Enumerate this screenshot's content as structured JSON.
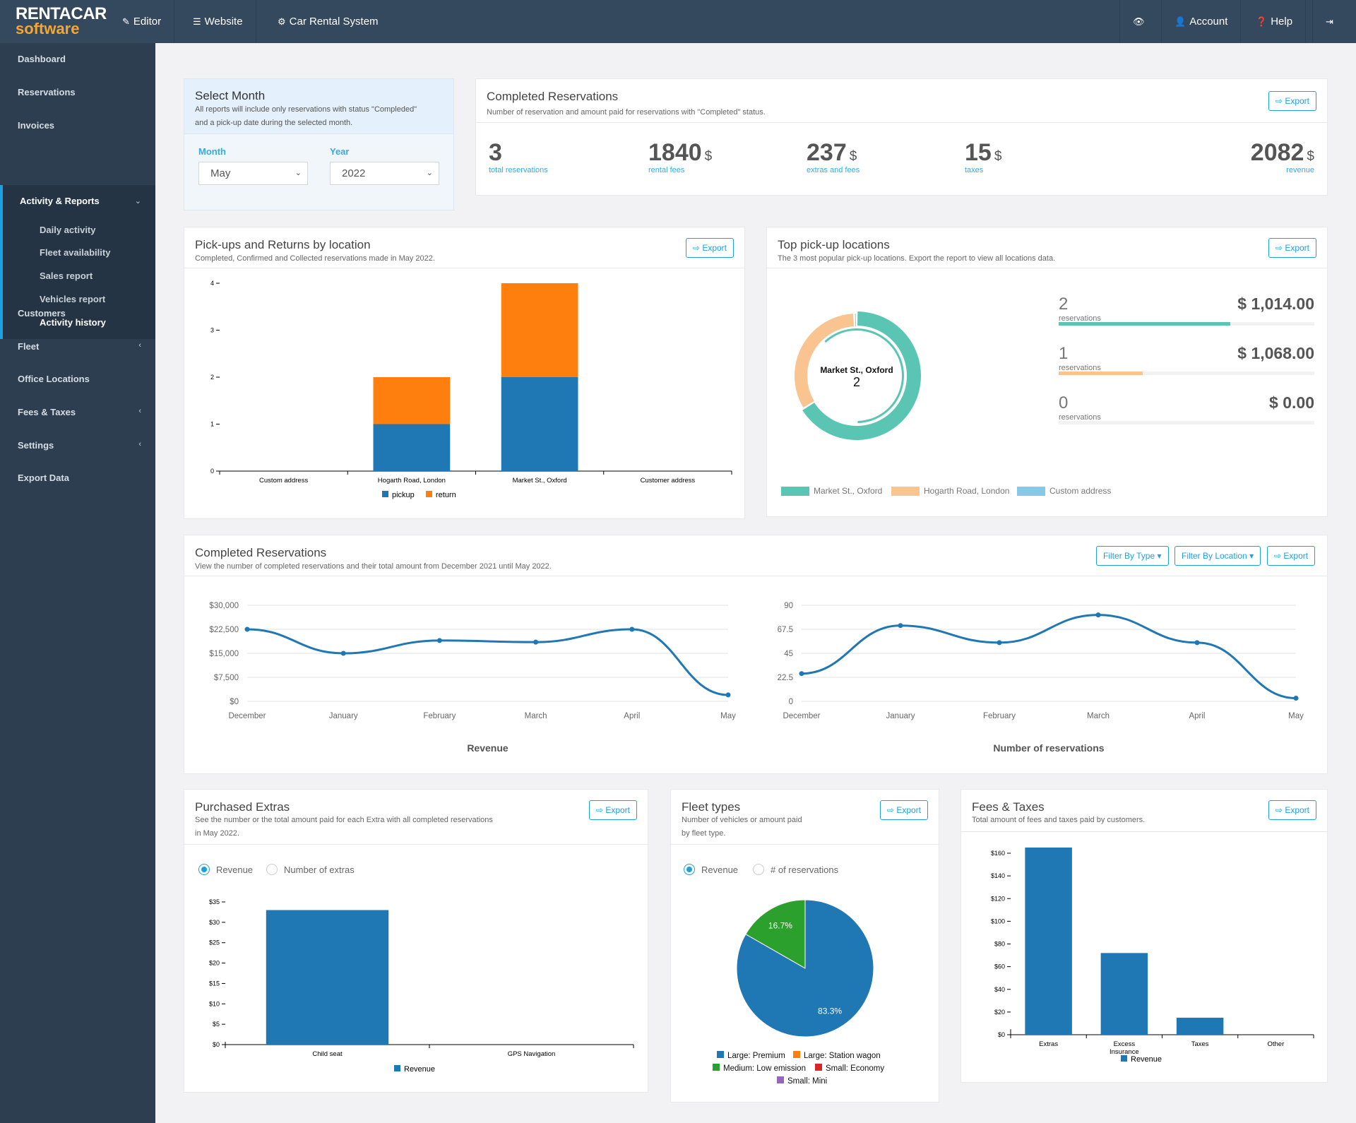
{
  "header": {
    "logo_top": "RENTACAR",
    "logo_bottom": "software",
    "nav": [
      {
        "label": "Editor",
        "icon": "pencil-icon"
      },
      {
        "label": "Website",
        "icon": "list-icon"
      },
      {
        "label": "Car Rental System",
        "icon": "gear-icon"
      }
    ],
    "right": [
      {
        "label": "",
        "icon": "eye-icon"
      },
      {
        "label": "Account",
        "icon": "user-icon"
      },
      {
        "label": "Help",
        "icon": "question-icon"
      },
      {
        "label": "",
        "icon": "logout-icon"
      }
    ]
  },
  "sidebar": {
    "items": [
      "Dashboard",
      "Reservations",
      "Invoices"
    ],
    "group": {
      "label": "Activity & Reports",
      "sub": [
        "Daily activity",
        "Fleet availability",
        "Sales report",
        "Vehicles report",
        "Activity history"
      ]
    },
    "items2": [
      "Customers",
      "Fleet",
      "Office Locations",
      "Fees & Taxes",
      "Settings",
      "Export Data"
    ]
  },
  "select_month": {
    "title": "Select Month",
    "desc1": "All reports will include only reservations with status \"Compleded\"",
    "desc2": "and a pick-up date during the selected month.",
    "month_label": "Month",
    "month": "May",
    "year_label": "Year",
    "year": "2022"
  },
  "completed_summary": {
    "title": "Completed Reservations",
    "subtitle": "Number of reservation and amount paid for reservations with \"Completed\" status.",
    "export": "Export",
    "stats": [
      {
        "value": "3",
        "unit": "",
        "caption": "total reservations"
      },
      {
        "value": "1840",
        "unit": "$",
        "caption": "rental fees"
      },
      {
        "value": "237",
        "unit": "$",
        "caption": "extras and fees"
      },
      {
        "value": "15",
        "unit": "$",
        "caption": "taxes"
      },
      {
        "value": "2082",
        "unit": "$",
        "caption": "revenue"
      }
    ]
  },
  "pickups": {
    "title": "Pick-ups and Returns by location",
    "subtitle": "Completed, Confirmed and Collected reservations made in May 2022.",
    "export": "Export"
  },
  "top_locations": {
    "title": "Top pick-up locations",
    "subtitle": "The 3 most popular pick-up locations. Export the report to view all locations data.",
    "export": "Export",
    "center_label": "Market St., Oxford",
    "center_value": "2",
    "rows": [
      {
        "count": "2",
        "label": "reservations",
        "amount": "$ 1,014.00",
        "fill": 0.67,
        "color": "#5bc5b4"
      },
      {
        "count": "1",
        "label": "reservations",
        "amount": "$ 1,068.00",
        "fill": 0.33,
        "color": "#f9c48f"
      },
      {
        "count": "0",
        "label": "reservations",
        "amount": "$ 0.00",
        "fill": 0,
        "color": "#86c9e6"
      }
    ],
    "legend": [
      "Market St., Oxford",
      "Hogarth Road, London",
      "Custom address"
    ]
  },
  "completed_trend": {
    "title": "Completed Reservations",
    "subtitle": "View the number of completed reservations and their total amount from December 2021 until May 2022.",
    "filter_type": "Filter By Type",
    "filter_location": "Filter By Location",
    "export": "Export"
  },
  "extras": {
    "title": "Purchased Extras",
    "subtitle1": "See the number or the total amount paid for each Extra with all completed reservations",
    "subtitle2": "in May 2022.",
    "export": "Export",
    "radio": [
      "Revenue",
      "Number of extras"
    ]
  },
  "fleet": {
    "title": "Fleet types",
    "subtitle1": "Number of vehicles or amount paid",
    "subtitle2": "by fleet type.",
    "export": "Export",
    "radio": [
      "Revenue",
      "# of reservations"
    ]
  },
  "fees": {
    "title": "Fees & Taxes",
    "subtitle": "Total amount of fees and taxes paid by customers.",
    "export": "Export"
  },
  "chart_data": [
    {
      "id": "pickups",
      "type": "bar",
      "stacked": true,
      "categories": [
        "Custom address",
        "Hogarth Road, London",
        "Market St., Oxford",
        "Customer address"
      ],
      "series": [
        {
          "name": "pickup",
          "values": [
            0,
            1,
            2,
            0
          ],
          "color": "#1f77b4"
        },
        {
          "name": "return",
          "values": [
            0,
            1,
            2,
            0
          ],
          "color": "#ff7f0e"
        }
      ],
      "ylim": [
        0,
        4
      ],
      "yticks": [
        "0",
        "1",
        "2",
        "3",
        "4"
      ]
    },
    {
      "id": "top_locations",
      "type": "pie",
      "donut": true,
      "labels": [
        "Market St., Oxford",
        "Hogarth Road, London",
        "Custom address"
      ],
      "values": [
        2,
        1,
        0.02
      ],
      "colors": [
        "#5bc5b4",
        "#f9c48f",
        "#86c9e6"
      ]
    },
    {
      "id": "revenue",
      "type": "line",
      "title": "Revenue",
      "categories": [
        "December",
        "January",
        "February",
        "March",
        "April",
        "May"
      ],
      "values": [
        22500,
        15000,
        19000,
        18500,
        22500,
        2000
      ],
      "ylim": [
        0,
        30000
      ],
      "yticks": [
        "$0",
        "$7,500",
        "$15,000",
        "$22,500",
        "$30,000"
      ]
    },
    {
      "id": "reservations",
      "type": "line",
      "title": "Number of reservations",
      "categories": [
        "December",
        "January",
        "February",
        "March",
        "April",
        "May"
      ],
      "values": [
        26,
        71,
        55,
        81,
        55,
        3
      ],
      "ylim": [
        0,
        90
      ],
      "yticks": [
        "0",
        "22.5",
        "45",
        "67.5",
        "90"
      ]
    },
    {
      "id": "extras",
      "type": "bar",
      "categories": [
        "Child seat",
        "GPS Navigation"
      ],
      "values": [
        33,
        0
      ],
      "legend": "Revenue",
      "ylim": [
        0,
        35
      ],
      "yticks": [
        "$0",
        "$5",
        "$10",
        "$15",
        "$20",
        "$25",
        "$30",
        "$35"
      ]
    },
    {
      "id": "fleet",
      "type": "pie",
      "labels": [
        "Large: Premium",
        "Large: Station wagon",
        "Medium: Low emission",
        "Small: Economy",
        "Small: Mini"
      ],
      "values": [
        83.3,
        0,
        16.7,
        0,
        0
      ],
      "value_labels": [
        "83.3%",
        "",
        "16.7%",
        "",
        ""
      ],
      "colors": [
        "#1f77b4",
        "#ff7f0e",
        "#2ca02c",
        "#d62728",
        "#9467bd"
      ]
    },
    {
      "id": "fees",
      "type": "bar",
      "categories": [
        "Extras",
        "Excess Insurance",
        "Taxes",
        "Other"
      ],
      "values": [
        165,
        72,
        15,
        0
      ],
      "legend": "Revenue",
      "ylim": [
        0,
        160
      ],
      "yticks": [
        "$0",
        "$20",
        "$40",
        "$60",
        "$80",
        "$100",
        "$120",
        "$140",
        "$160"
      ]
    }
  ]
}
